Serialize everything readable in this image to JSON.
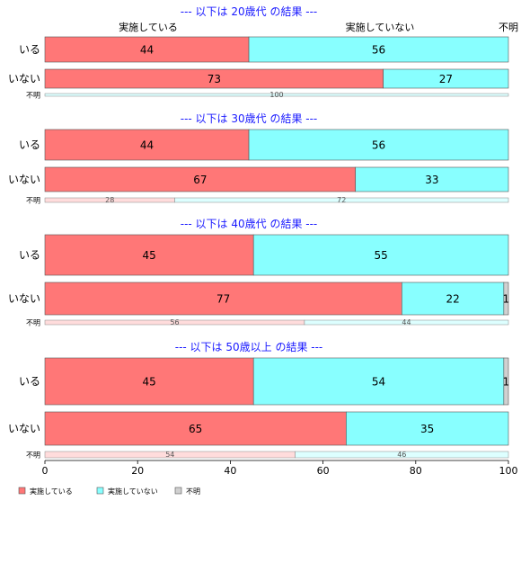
{
  "chart_data": {
    "type": "bar",
    "orientation": "horizontal-stacked-100",
    "xlim": [
      0,
      100
    ],
    "x_ticks": [
      "0",
      "20",
      "40",
      "60",
      "80",
      "100"
    ],
    "column_headers": [
      "実施している",
      "実施していない",
      "不明"
    ],
    "legend": {
      "placement": "bottom-left",
      "entries": [
        "実施している",
        "実施していない",
        "不明"
      ]
    },
    "colors": {
      "実施している": "#ff7777",
      "実施していない": "#88ffff",
      "不明": "#d0d0d0",
      "title": "#1a1aff",
      "faint_実施している": "#ffdcdc",
      "faint_実施していない": "#ddffff"
    },
    "groups": [
      {
        "title": "--- 以下は 20歳代 の結果 ---",
        "rows": [
          {
            "label": "いる",
            "values": [
              44,
              56,
              0
            ],
            "labels": [
              "44",
              "56",
              ""
            ],
            "kind": "main"
          },
          {
            "label": "いない",
            "values": [
              73,
              27,
              0
            ],
            "labels": [
              "73",
              "27",
              ""
            ],
            "kind": "main"
          },
          {
            "label": "不明",
            "values": [
              0,
              100,
              0
            ],
            "labels": [
              "",
              "100",
              ""
            ],
            "kind": "small"
          }
        ]
      },
      {
        "title": "--- 以下は 30歳代 の結果 ---",
        "rows": [
          {
            "label": "いる",
            "values": [
              44,
              56,
              0
            ],
            "labels": [
              "44",
              "56",
              ""
            ],
            "kind": "main"
          },
          {
            "label": "いない",
            "values": [
              67,
              33,
              0
            ],
            "labels": [
              "67",
              "33",
              ""
            ],
            "kind": "main"
          },
          {
            "label": "不明",
            "values": [
              28,
              72,
              0
            ],
            "labels": [
              "28",
              "72",
              ""
            ],
            "kind": "small"
          }
        ]
      },
      {
        "title": "--- 以下は 40歳代 の結果 ---",
        "rows": [
          {
            "label": "いる",
            "values": [
              45,
              55,
              0
            ],
            "labels": [
              "45",
              "55",
              ""
            ],
            "kind": "main"
          },
          {
            "label": "いない",
            "values": [
              77,
              22,
              1
            ],
            "labels": [
              "77",
              "22",
              "1"
            ],
            "kind": "main"
          },
          {
            "label": "不明",
            "values": [
              56,
              44,
              0
            ],
            "labels": [
              "56",
              "44",
              ""
            ],
            "kind": "small"
          }
        ]
      },
      {
        "title": "--- 以下は 50歳以上 の結果 ---",
        "rows": [
          {
            "label": "いる",
            "values": [
              45,
              54,
              1
            ],
            "labels": [
              "45",
              "54",
              "1"
            ],
            "kind": "main"
          },
          {
            "label": "いない",
            "values": [
              65,
              35,
              0
            ],
            "labels": [
              "65",
              "35",
              ""
            ],
            "kind": "main"
          },
          {
            "label": "不明",
            "values": [
              54,
              46,
              0
            ],
            "labels": [
              "54",
              "46",
              ""
            ],
            "kind": "small"
          }
        ]
      }
    ]
  }
}
